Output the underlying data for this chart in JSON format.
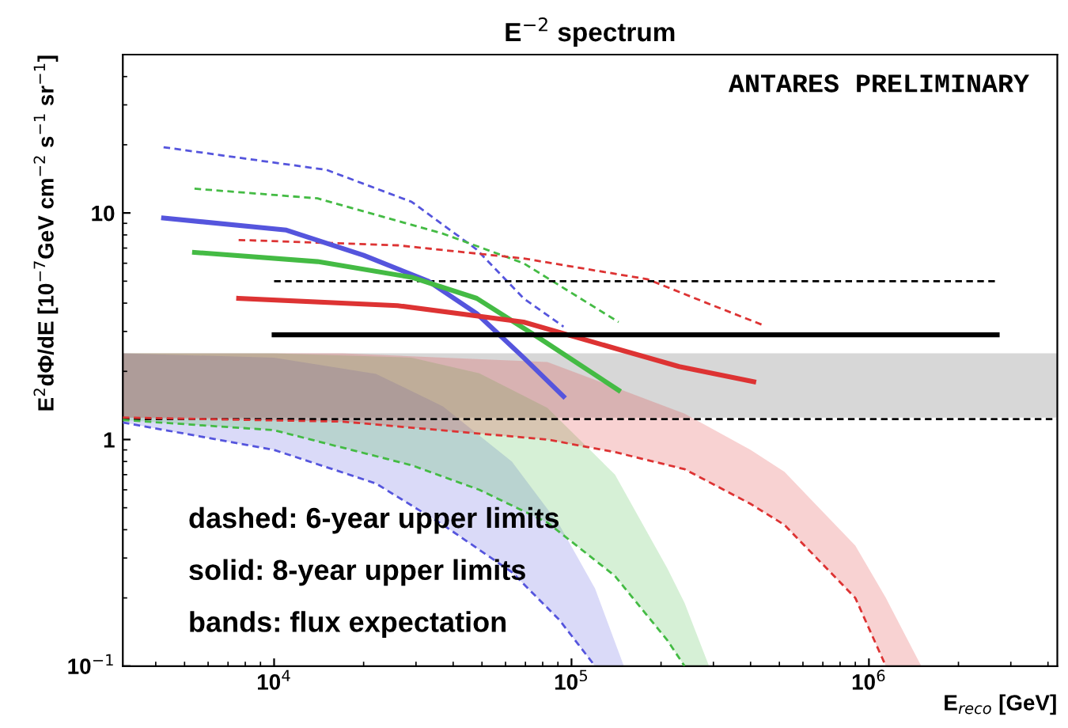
{
  "chart_data": {
    "type": "line",
    "title": "E$^{−2}$ spectrum",
    "xlabel": "E$_{reco}$ [GeV]",
    "ylabel": "E$^{2}$dΦ/dE [10$^{−7}$GeV cm$^{−2}$ s$^{−1}$ sr$^{−1}$]",
    "log": "xy",
    "xlim": [
      3100,
      4300000
    ],
    "ylim": [
      0.1,
      50
    ],
    "xticks": [
      {
        "value": 10000,
        "label": "10$^{4}$"
      },
      {
        "value": 100000,
        "label": "10$^{5}$"
      },
      {
        "value": 1000000,
        "label": "10$^{6}$"
      }
    ],
    "yticks": [
      {
        "value": 0.1,
        "label": "10$^{−1}$"
      },
      1,
      10
    ],
    "grid": false,
    "legend": false,
    "series": [
      {
        "color": "#5555dd",
        "line_style": "dashed",
        "x": [
          4250,
          15000,
          29000,
          48000,
          69000,
          94000
        ],
        "values": [
          19.5,
          15.5,
          11.2,
          6.9,
          4.2,
          3.15
        ]
      },
      {
        "color": "#44bb44",
        "line_style": "dashed",
        "x": [
          5400,
          14000,
          37000,
          69000,
          144000
        ],
        "values": [
          12.8,
          11.6,
          8.1,
          6.0,
          3.3
        ]
      },
      {
        "color": "#dd3333",
        "line_style": "dashed",
        "x": [
          7600,
          26000,
          69000,
          180000,
          300000,
          440000
        ],
        "values": [
          7.6,
          7.2,
          6.3,
          5.1,
          3.9,
          3.2
        ]
      },
      {
        "color": "#000000",
        "line_style": "dashed",
        "x": [
          10000,
          2700000
        ],
        "values": [
          5,
          5
        ]
      },
      {
        "color": "#5555dd",
        "line_style": "solid",
        "x": [
          4250,
          11000,
          20000,
          33000,
          48000,
          69000,
          94000
        ],
        "values": [
          9.5,
          8.4,
          6.5,
          5.0,
          3.6,
          2.3,
          1.55
        ]
      },
      {
        "color": "#44bb44",
        "line_style": "solid",
        "x": [
          5400,
          14000,
          29000,
          48000,
          78000,
          144000
        ],
        "values": [
          6.7,
          6.1,
          5.2,
          4.2,
          2.8,
          1.65
        ]
      },
      {
        "color": "#dd3333",
        "line_style": "solid",
        "x": [
          7600,
          26000,
          69000,
          144000,
          230000,
          410000
        ],
        "values": [
          4.2,
          3.9,
          3.3,
          2.5,
          2.1,
          1.8
        ]
      },
      {
        "color": "#000000",
        "line_style": "solid",
        "x": [
          10000,
          2700000
        ],
        "values": [
          2.9,
          2.9
        ]
      },
      {
        "color": "#5555dd",
        "line_style": "dashed",
        "x": [
          3100,
          10000,
          22000,
          37000,
          63000,
          91000,
          120000,
          150000
        ],
        "values": [
          1.19,
          0.9,
          0.64,
          0.42,
          0.26,
          0.16,
          0.1,
          null
        ],
        "lower": [
          1.19,
          0.9,
          0.64,
          0.42,
          0.26,
          0.16,
          0.1,
          0.1
        ],
        "upper": [
          2.4,
          2.3,
          1.95,
          1.4,
          0.8,
          0.42,
          0.22,
          0.1
        ]
      },
      {
        "color": "#44bb44",
        "line_style": "dashed",
        "x": [
          3100,
          10000,
          29000,
          49000,
          83000,
          140000,
          210000,
          240000,
          290000
        ],
        "values": [
          1.22,
          1.1,
          0.77,
          0.6,
          0.43,
          0.25,
          0.13,
          0.1,
          null
        ],
        "lower": [
          1.22,
          1.1,
          0.77,
          0.6,
          0.43,
          0.25,
          0.13,
          0.1,
          0.1
        ],
        "upper": [
          2.4,
          2.4,
          2.3,
          1.96,
          1.38,
          0.7,
          0.27,
          0.19,
          0.1
        ]
      },
      {
        "color": "#dd3333",
        "line_style": "dashed",
        "x": [
          3100,
          17000,
          83000,
          140000,
          240000,
          400000,
          520000,
          900000,
          1140000,
          1500000
        ],
        "values": [
          1.25,
          1.2,
          1.0,
          0.88,
          0.74,
          0.52,
          0.42,
          0.2,
          0.1,
          null
        ],
        "lower": [
          1.25,
          1.2,
          1.0,
          0.88,
          0.74,
          0.52,
          0.42,
          0.2,
          0.1,
          0.1
        ],
        "upper": [
          2.4,
          2.4,
          2.2,
          1.7,
          1.3,
          0.9,
          0.72,
          0.34,
          0.2,
          0.1
        ]
      }
    ],
    "bands": [
      {
        "axis": "y",
        "from": 1.25,
        "to": 2.4,
        "color": "#b0b0b0"
      }
    ],
    "ref_lines": [
      {
        "axis": "y",
        "value": 1.23,
        "color": "#000000",
        "line_style": "dashed"
      }
    ],
    "annotations": [
      "ANTARES PRELIMINARY",
      "dashed: 6-year upper limits",
      "solid: 8-year upper limits",
      "bands: flux expectation"
    ]
  }
}
